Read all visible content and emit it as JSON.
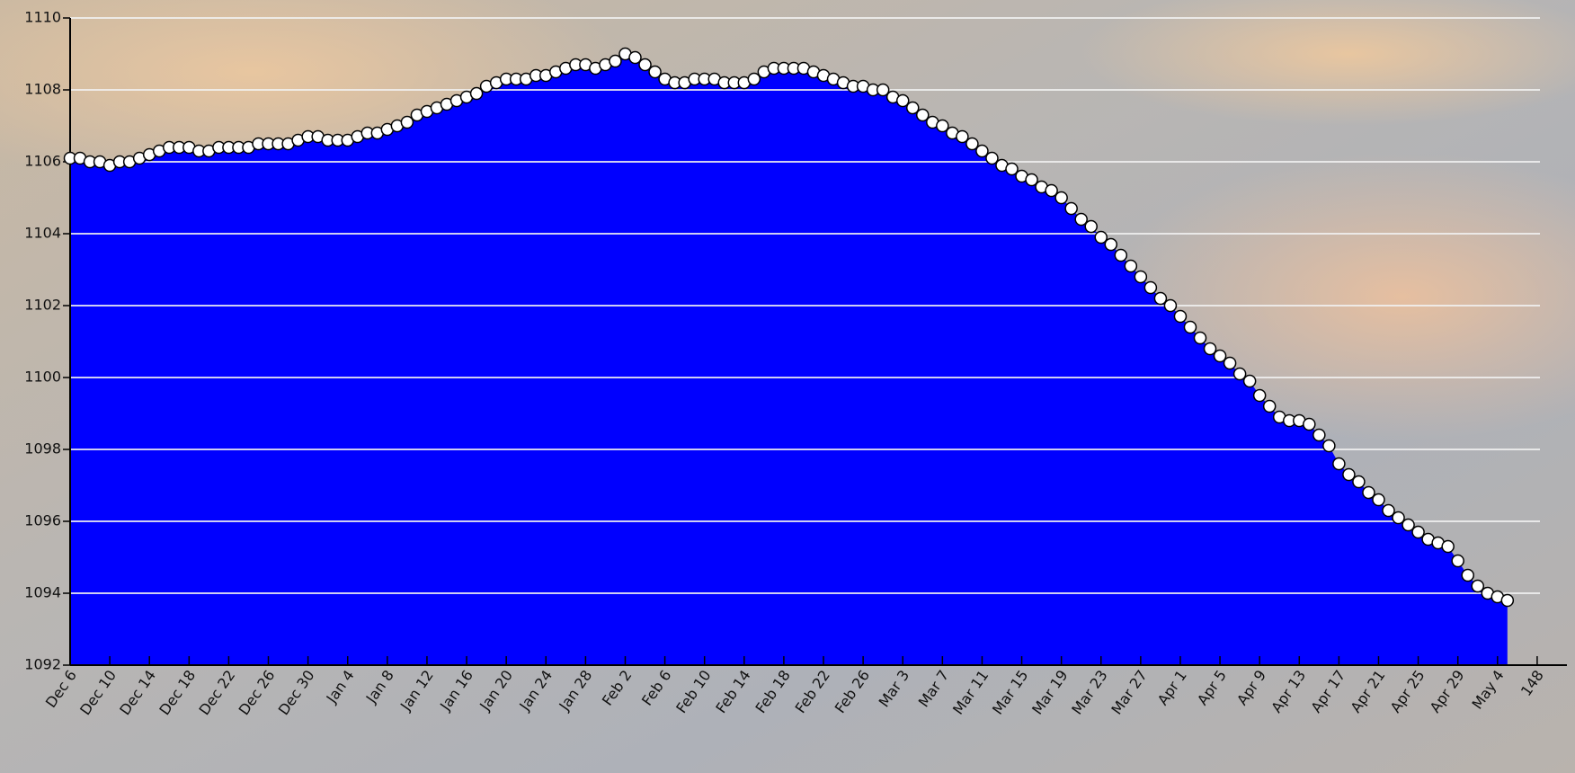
{
  "chart_data": {
    "type": "area",
    "x": [
      0,
      1,
      2,
      3,
      4,
      5,
      6,
      7,
      8,
      9,
      10,
      11,
      12,
      13,
      14,
      15,
      16,
      17,
      18,
      19,
      20,
      21,
      22,
      23,
      24,
      25,
      26,
      27,
      28,
      29,
      30,
      31,
      32,
      33,
      34,
      35,
      36,
      37,
      38,
      39,
      40,
      41,
      42,
      43,
      44,
      45,
      46,
      47,
      48,
      49,
      50,
      51,
      52,
      53,
      54,
      55,
      56,
      57,
      58,
      59,
      60,
      61,
      62,
      63,
      64,
      65,
      66,
      67,
      68,
      69,
      70,
      71,
      72,
      73,
      74,
      75,
      76,
      77,
      78,
      79,
      80,
      81,
      82,
      83,
      84,
      85,
      86,
      87,
      88,
      89,
      90,
      91,
      92,
      93,
      94,
      95,
      96,
      97,
      98,
      99,
      100,
      101,
      102,
      103,
      104,
      105,
      106,
      107,
      108,
      109,
      110,
      111,
      112,
      113,
      114,
      115,
      116,
      117,
      118,
      119,
      120,
      121,
      122,
      123,
      124,
      125,
      126,
      127,
      128,
      129,
      130,
      131,
      132,
      133,
      134,
      135,
      136,
      137,
      138,
      139,
      140,
      141,
      142,
      143,
      144,
      145
    ],
    "values": [
      1106.1,
      1106.1,
      1106.0,
      1106.0,
      1105.9,
      1106.0,
      1106.0,
      1106.1,
      1106.2,
      1106.3,
      1106.4,
      1106.4,
      1106.4,
      1106.3,
      1106.3,
      1106.4,
      1106.4,
      1106.4,
      1106.4,
      1106.5,
      1106.5,
      1106.5,
      1106.5,
      1106.6,
      1106.7,
      1106.7,
      1106.6,
      1106.6,
      1106.6,
      1106.7,
      1106.8,
      1106.8,
      1106.9,
      1107.0,
      1107.1,
      1107.3,
      1107.4,
      1107.5,
      1107.6,
      1107.7,
      1107.8,
      1107.9,
      1108.1,
      1108.2,
      1108.3,
      1108.3,
      1108.3,
      1108.4,
      1108.4,
      1108.5,
      1108.6,
      1108.7,
      1108.7,
      1108.6,
      1108.7,
      1108.8,
      1109.0,
      1108.9,
      1108.7,
      1108.5,
      1108.3,
      1108.2,
      1108.2,
      1108.3,
      1108.3,
      1108.3,
      1108.2,
      1108.2,
      1108.2,
      1108.3,
      1108.5,
      1108.6,
      1108.6,
      1108.6,
      1108.6,
      1108.5,
      1108.4,
      1108.3,
      1108.2,
      1108.1,
      1108.1,
      1108.0,
      1108.0,
      1107.8,
      1107.7,
      1107.5,
      1107.3,
      1107.1,
      1107.0,
      1106.8,
      1106.7,
      1106.5,
      1106.3,
      1106.1,
      1105.9,
      1105.8,
      1105.6,
      1105.5,
      1105.3,
      1105.2,
      1105.0,
      1104.7,
      1104.4,
      1104.2,
      1103.9,
      1103.7,
      1103.4,
      1103.1,
      1102.8,
      1102.5,
      1102.2,
      1102.0,
      1101.7,
      1101.4,
      1101.1,
      1100.8,
      1100.6,
      1100.4,
      1100.1,
      1099.9,
      1099.5,
      1099.2,
      1098.9,
      1098.8,
      1098.8,
      1098.7,
      1098.4,
      1098.1,
      1097.6,
      1097.3,
      1097.1,
      1096.8,
      1096.6,
      1096.3,
      1096.1,
      1095.9,
      1095.7,
      1095.5,
      1095.4,
      1095.3,
      1094.9,
      1094.5,
      1094.2,
      1094.0,
      1093.9,
      1093.8
    ],
    "color": "#0000ff",
    "xlim": [
      0,
      151
    ],
    "xticks": [
      {
        "value": 0,
        "label": "Dec 6"
      },
      {
        "value": 4,
        "label": "Dec 10"
      },
      {
        "value": 8,
        "label": "Dec 14"
      },
      {
        "value": 12,
        "label": "Dec 18"
      },
      {
        "value": 16,
        "label": "Dec 22"
      },
      {
        "value": 20,
        "label": "Dec 26"
      },
      {
        "value": 24,
        "label": "Dec 30"
      },
      {
        "value": 28,
        "label": "Jan 4"
      },
      {
        "value": 32,
        "label": "Jan 8"
      },
      {
        "value": 36,
        "label": "Jan 12"
      },
      {
        "value": 40,
        "label": "Jan 16"
      },
      {
        "value": 44,
        "label": "Jan 20"
      },
      {
        "value": 48,
        "label": "Jan 24"
      },
      {
        "value": 52,
        "label": "Jan 28"
      },
      {
        "value": 56,
        "label": "Feb 2"
      },
      {
        "value": 60,
        "label": "Feb 6"
      },
      {
        "value": 64,
        "label": "Feb 10"
      },
      {
        "value": 68,
        "label": "Feb 14"
      },
      {
        "value": 72,
        "label": "Feb 18"
      },
      {
        "value": 76,
        "label": "Feb 22"
      },
      {
        "value": 80,
        "label": "Feb 26"
      },
      {
        "value": 84,
        "label": "Mar 3"
      },
      {
        "value": 88,
        "label": "Mar 7"
      },
      {
        "value": 92,
        "label": "Mar 11"
      },
      {
        "value": 96,
        "label": "Mar 15"
      },
      {
        "value": 100,
        "label": "Mar 19"
      },
      {
        "value": 104,
        "label": "Mar 23"
      },
      {
        "value": 108,
        "label": "Mar 27"
      },
      {
        "value": 112,
        "label": "Apr 1"
      },
      {
        "value": 116,
        "label": "Apr 5"
      },
      {
        "value": 120,
        "label": "Apr 9"
      },
      {
        "value": 124,
        "label": "Apr 13"
      },
      {
        "value": 128,
        "label": "Apr 17"
      },
      {
        "value": 132,
        "label": "Apr 21"
      },
      {
        "value": 136,
        "label": "Apr 25"
      },
      {
        "value": 140,
        "label": "Apr 29"
      },
      {
        "value": 144,
        "label": "May 4"
      },
      148
    ],
    "ylim": [
      1092,
      1110
    ],
    "yticks": [
      1092,
      1094,
      1096,
      1098,
      1100,
      1102,
      1104,
      1106,
      1108,
      1110
    ],
    "grid": true
  }
}
